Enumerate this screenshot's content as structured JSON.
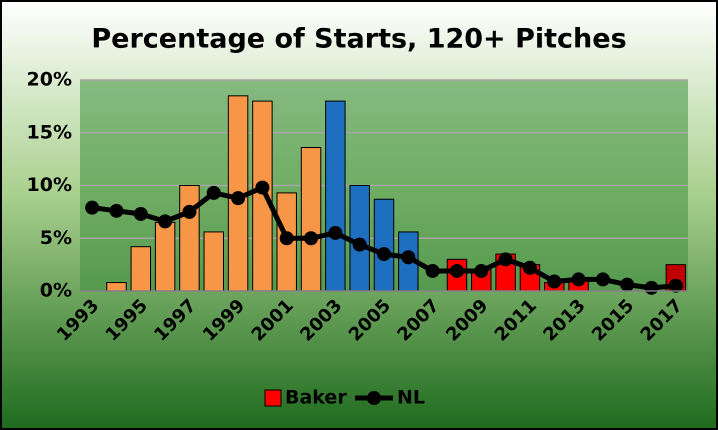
{
  "chart_data": {
    "type": "bar",
    "title": "Percentage of Starts, 120+ Pitches",
    "categories": [
      "1993",
      null,
      "1995",
      null,
      "1997",
      null,
      "1999",
      null,
      "2001",
      null,
      "2003",
      null,
      "2005",
      null,
      "2007",
      null,
      "2009",
      null,
      "2011",
      null,
      "2013",
      null,
      "2015",
      null,
      "2017"
    ],
    "series": [
      {
        "name": "Baker",
        "type": "bar",
        "color": "#ff0000",
        "colors": [
          "#f79646",
          "#f79646",
          "#f79646",
          "#f79646",
          "#f79646",
          "#f79646",
          "#f79646",
          "#f79646",
          "#f79646",
          "#f79646",
          "#1f6fc0",
          "#1f6fc0",
          "#1f6fc0",
          "#1f6fc0",
          "#ff0000",
          "#ff0000",
          "#ff0000",
          "#ff0000",
          "#ff0000",
          "#ff0000",
          "#ff0000",
          "#ff0000",
          "#ff0000",
          "#ff0000",
          "#c00000"
        ],
        "values": [
          0,
          0.8,
          4.2,
          6.5,
          10,
          5.6,
          18.5,
          18,
          9.3,
          13.6,
          18,
          10,
          8.7,
          5.6,
          0,
          3.0,
          2.0,
          3.5,
          2.5,
          0.8,
          1.2,
          0,
          0,
          0,
          2.5
        ]
      },
      {
        "name": "NL",
        "type": "line",
        "color": "#000000",
        "values": [
          7.9,
          7.6,
          7.3,
          6.6,
          7.5,
          9.3,
          8.8,
          9.8,
          5.0,
          5.0,
          5.5,
          4.4,
          3.5,
          3.2,
          1.9,
          1.9,
          1.9,
          3.0,
          2.2,
          0.9,
          1.1,
          1.1,
          0.6,
          0.3,
          0.5
        ]
      }
    ],
    "ylim": [
      0,
      20
    ],
    "yticks": [
      {
        "value": 0,
        "label": "0%"
      },
      {
        "value": 5,
        "label": "5%"
      },
      {
        "value": 10,
        "label": "10%"
      },
      {
        "value": 15,
        "label": "15%"
      },
      {
        "value": 20,
        "label": "20%"
      }
    ],
    "grid": true,
    "legend": "bottom"
  }
}
